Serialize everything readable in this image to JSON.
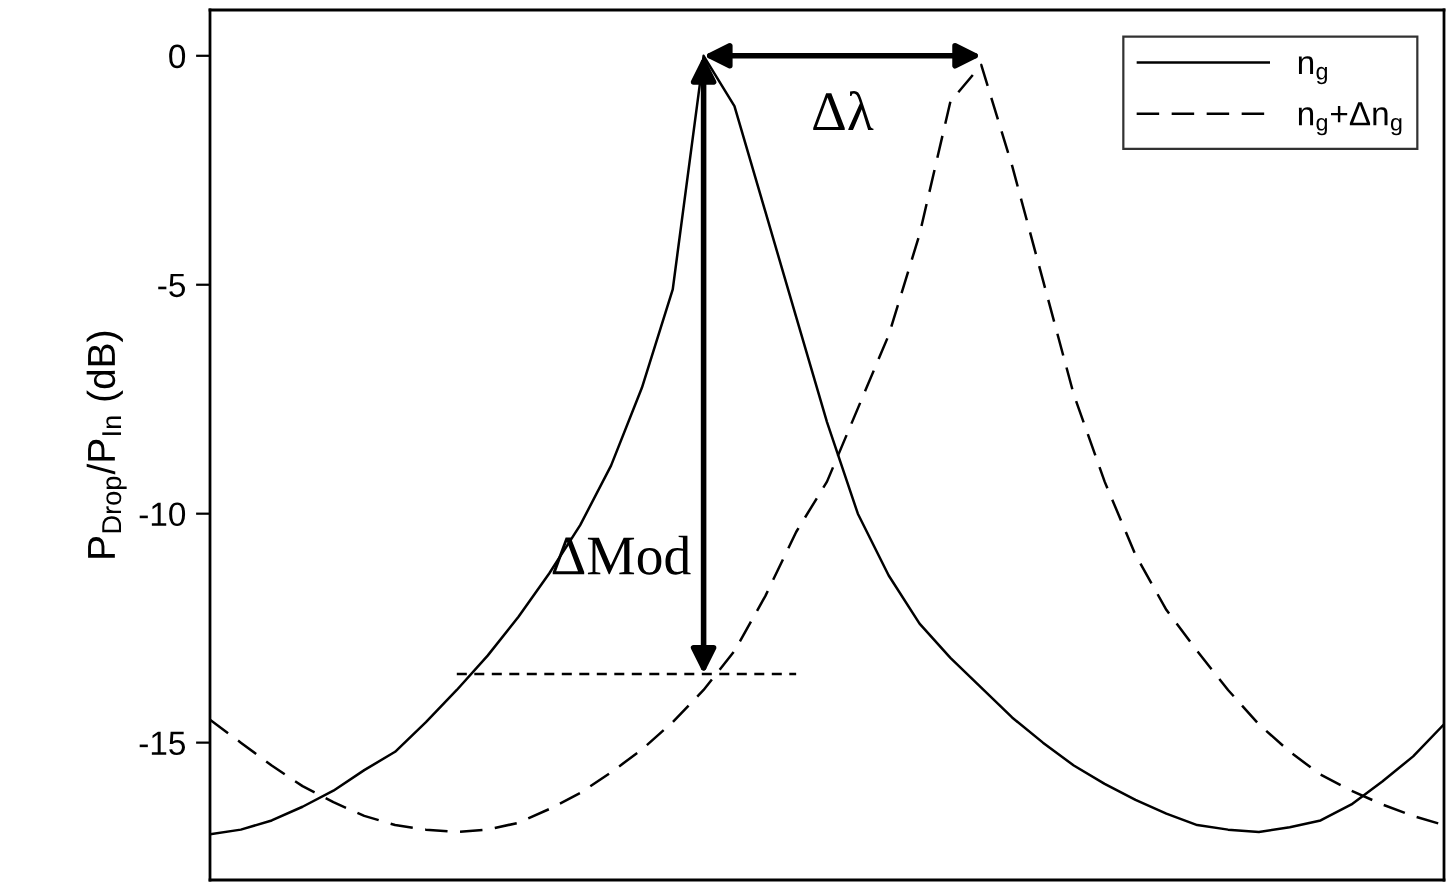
{
  "chart_data": {
    "type": "line",
    "ylabel": "P$_{Drop}$/P$_{In}$ (dB)",
    "categories": [
      null,
      null,
      null,
      null,
      null,
      null,
      null,
      null,
      null,
      null,
      null,
      null,
      null,
      null,
      null,
      null,
      null,
      null,
      null,
      null,
      null,
      null,
      null,
      null,
      null,
      null,
      null,
      null,
      null,
      null,
      null,
      null,
      null,
      null,
      null,
      null,
      null,
      null,
      null,
      null,
      null
    ],
    "ylim": [
      -18,
      1
    ],
    "yticks": [
      0,
      -5,
      -10,
      -15
    ],
    "tick_labels": "y",
    "legend": "top right",
    "series": [
      {
        "name": "n$_{g}$",
        "color": "#000000",
        "line_style": "solid",
        "values": [
          -17.0,
          -16.9,
          -16.7,
          -16.4,
          -16.05,
          -15.6,
          -15.2,
          -14.55,
          -13.85,
          -13.1,
          -12.25,
          -11.3,
          -10.25,
          -8.95,
          -7.25,
          -5.1,
          0,
          -1.1,
          -3.4,
          -5.7,
          -8.0,
          -10.0,
          -11.35,
          -12.4,
          -13.15,
          -13.8,
          -14.45,
          -15.0,
          -15.5,
          -15.9,
          -16.25,
          -16.55,
          -16.8,
          -16.9,
          -16.95,
          -16.85,
          -16.7,
          -16.35,
          -15.85,
          -15.3,
          -14.6
        ]
      },
      {
        "name": "n$_{g}$+Δn$_{g}$",
        "color": "#000000",
        "line_style": "dashed",
        "values": [
          -14.5,
          -15.0,
          -15.5,
          -15.95,
          -16.3,
          -16.6,
          -16.8,
          -16.9,
          -16.95,
          -16.9,
          -16.75,
          -16.45,
          -16.1,
          -15.65,
          -15.15,
          -14.55,
          -13.85,
          -13.0,
          -11.8,
          -10.4,
          -9.3,
          -7.7,
          -6.1,
          -3.9,
          -1.0,
          -0.2,
          -2.4,
          -4.9,
          -7.4,
          -9.3,
          -10.9,
          -12.1,
          -13.0,
          -13.85,
          -14.6,
          -15.2,
          -15.7,
          -16.05,
          -16.35,
          -16.6,
          -16.8
        ]
      },
      {
        "color": "#000000",
        "line_style": "dotted",
        "values": [
          null,
          null,
          null,
          null,
          null,
          null,
          null,
          null,
          -13.5,
          -13.5,
          -13.5,
          -13.5,
          -13.5,
          -13.5,
          -13.5,
          -13.5,
          -13.5,
          -13.5,
          -13.5,
          -13.5,
          null,
          null,
          null,
          null,
          null,
          null,
          null,
          null,
          null,
          null,
          null,
          null,
          null,
          null,
          null,
          null,
          null,
          null,
          null,
          null,
          null
        ]
      }
    ],
    "annotations": [
      {
        "text": "Δλ"
      },
      {
        "text": "ΔMod"
      }
    ]
  }
}
